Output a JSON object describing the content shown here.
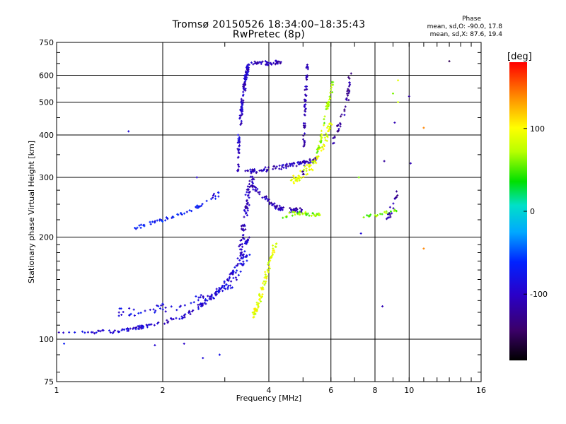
{
  "header": {
    "title": "Tromsø 20150526 18:34:00–18:35:43",
    "subtitle": "RwPretec (8p)"
  },
  "phase_stats": {
    "heading": "Phase",
    "line_o": "mean, sd,O: -90.0, 17.8",
    "line_x": "mean, sd,X:  87.6, 19.4"
  },
  "colorbar": {
    "label": "[deg]",
    "ticks": [
      {
        "value": 100,
        "label": "100"
      },
      {
        "value": 0,
        "label": "0"
      },
      {
        "value": -100,
        "label": "-100"
      }
    ],
    "range": [
      -180,
      180
    ]
  },
  "chart_data": {
    "type": "scatter",
    "title": "Tromsø 20150526 18:34:00–18:35:43",
    "subtitle": "RwPretec (8p)",
    "xlabel": "Frequency [MHz]",
    "ylabel": "Stationary phase Virtual Height [km]",
    "xscale": "log",
    "yscale": "log",
    "xlim": [
      1,
      16
    ],
    "ylim": [
      75,
      750
    ],
    "grid": true,
    "x_ticks": [
      {
        "value": 1,
        "label": "1",
        "grid": false
      },
      {
        "value": 2,
        "label": "2",
        "grid": true
      },
      {
        "value": 4,
        "label": "4",
        "grid": true
      },
      {
        "value": 6,
        "label": "6",
        "grid": true
      },
      {
        "value": 8,
        "label": "8",
        "grid": true
      },
      {
        "value": 10,
        "label": "10",
        "grid": true
      },
      {
        "value": 16,
        "label": "16",
        "grid": false
      }
    ],
    "y_ticks": [
      {
        "value": 75,
        "label": "75",
        "grid": false
      },
      {
        "value": 100,
        "label": "100",
        "grid": true
      },
      {
        "value": 200,
        "label": "200",
        "grid": true
      },
      {
        "value": 300,
        "label": "300",
        "grid": true
      },
      {
        "value": 400,
        "label": "400",
        "grid": true
      },
      {
        "value": 500,
        "label": "500",
        "grid": true
      },
      {
        "value": 600,
        "label": "600",
        "grid": true
      },
      {
        "value": 750,
        "label": "750",
        "grid": false
      }
    ],
    "series": [
      {
        "comment": "E-region trace",
        "segments": [
          {
            "x": [
              1.0,
              1.2,
              1.4,
              1.55,
              1.7,
              1.85,
              2.0,
              2.2,
              2.4,
              2.6,
              2.8,
              3.0,
              3.15,
              3.3,
              3.42,
              3.5
            ],
            "y": [
              105,
              105,
              105,
              106,
              108,
              110,
              112,
              115,
              120,
              127,
              135,
              145,
              157,
              170,
              185,
              200
            ],
            "phase": -95,
            "n": 160,
            "jx": 0.01,
            "jy": 0.012
          }
        ]
      },
      {
        "comment": "lower oblique trace",
        "segments": [
          {
            "x": [
              1.5,
              1.8,
              2.1,
              2.4,
              2.7,
              3.0,
              3.2,
              3.35,
              3.5
            ],
            "y": [
              120,
              122,
              124,
              128,
              133,
              140,
              150,
              165,
              180
            ],
            "phase": -85,
            "n": 90,
            "jx": 0.02,
            "jy": 0.03
          }
        ]
      },
      {
        "comment": "sparse mid trace",
        "segments": [
          {
            "x": [
              1.6,
              1.8,
              2.0,
              2.2,
              2.4,
              2.6
            ],
            "y": [
              210,
              218,
              225,
              232,
              240,
              250
            ],
            "phase": -70,
            "n": 45,
            "jx": 0.01,
            "jy": 0.01
          },
          {
            "x": [
              2.6,
              2.8,
              2.95
            ],
            "y": [
              252,
              262,
              275
            ],
            "phase": -80,
            "n": 10,
            "jx": 0.015,
            "jy": 0.015
          }
        ]
      },
      {
        "comment": "F-region O trace",
        "segments": [
          {
            "x": [
              3.25,
              3.3,
              3.35,
              3.4,
              3.45,
              3.5
            ],
            "y": [
              300,
              400,
              480,
              540,
              600,
              640
            ],
            "phase": -100,
            "n": 120,
            "jx": 0.008,
            "jy": 0.02
          },
          {
            "x": [
              3.3,
              3.4,
              3.5,
              3.6
            ],
            "y": [
              170,
              220,
              270,
              310
            ],
            "phase": -105,
            "n": 80,
            "jx": 0.015,
            "jy": 0.03
          },
          {
            "x": [
              3.6,
              3.8,
              4.0,
              4.2,
              4.4
            ],
            "y": [
              650,
              655,
              650,
              655,
              650
            ],
            "phase": -110,
            "n": 40,
            "jx": 0.01,
            "jy": 0.012
          },
          {
            "x": [
              3.4,
              3.8,
              4.2,
              4.6,
              5.0,
              5.5
            ],
            "y": [
              310,
              315,
              320,
              325,
              330,
              340
            ],
            "phase": -105,
            "n": 90,
            "jx": 0.01,
            "jy": 0.015
          },
          {
            "x": [
              3.6,
              3.9,
              4.2,
              4.5,
              5.0
            ],
            "y": [
              280,
              260,
              245,
              240,
              240
            ],
            "phase": -110,
            "n": 70,
            "jx": 0.01,
            "jy": 0.015
          },
          {
            "x": [
              5.0,
              5.05,
              5.1,
              5.15
            ],
            "y": [
              300,
              450,
              560,
              640
            ],
            "phase": -110,
            "n": 60,
            "jx": 0.006,
            "jy": 0.02
          }
        ]
      },
      {
        "comment": "F-region X trace",
        "segments": [
          {
            "x": [
              3.6,
              3.8,
              4.0,
              4.2
            ],
            "y": [
              115,
              135,
              165,
              195
            ],
            "phase": 90,
            "n": 80,
            "jx": 0.01,
            "jy": 0.02
          },
          {
            "x": [
              4.4,
              4.7,
              5.0,
              5.3,
              5.6
            ],
            "y": [
              230,
              235,
              235,
              233,
              232
            ],
            "phase": 60,
            "n": 40,
            "jx": 0.01,
            "jy": 0.012
          },
          {
            "x": [
              4.6,
              5.0,
              5.4,
              5.8,
              6.0
            ],
            "y": [
              290,
              310,
              330,
              380,
              440
            ],
            "phase": 90,
            "n": 80,
            "jx": 0.01,
            "jy": 0.03
          },
          {
            "x": [
              5.5,
              5.7,
              5.9,
              6.1
            ],
            "y": [
              350,
              420,
              500,
              580
            ],
            "phase": 70,
            "n": 50,
            "jx": 0.008,
            "jy": 0.02
          }
        ]
      },
      {
        "comment": "high-frequency traces",
        "segments": [
          {
            "x": [
              6.1,
              6.3,
              6.5,
              6.7,
              6.8
            ],
            "y": [
              380,
              420,
              460,
              520,
              600
            ],
            "phase": -120,
            "n": 40,
            "jx": 0.008,
            "jy": 0.02
          },
          {
            "x": [
              7.4,
              8.0,
              8.6,
              9.2
            ],
            "y": [
              230,
              232,
              236,
              240
            ],
            "phase": 60,
            "n": 22,
            "jx": 0.01,
            "jy": 0.01
          },
          {
            "x": [
              8.7,
              9.0,
              9.3
            ],
            "y": [
              225,
              250,
              270
            ],
            "phase": -115,
            "n": 18,
            "jx": 0.01,
            "jy": 0.02
          }
        ]
      },
      {
        "comment": "scatter noise",
        "points": [
          {
            "x": 1.6,
            "y": 410,
            "phase": -90
          },
          {
            "x": 2.5,
            "y": 300,
            "phase": -95
          },
          {
            "x": 10.0,
            "y": 520,
            "phase": -120
          },
          {
            "x": 11.0,
            "y": 420,
            "phase": 140
          },
          {
            "x": 11.0,
            "y": 185,
            "phase": 140
          },
          {
            "x": 13.0,
            "y": 660,
            "phase": -150
          },
          {
            "x": 10.1,
            "y": 330,
            "phase": -110
          },
          {
            "x": 9.3,
            "y": 580,
            "phase": 90
          },
          {
            "x": 9.3,
            "y": 500,
            "phase": 80
          },
          {
            "x": 9.1,
            "y": 435,
            "phase": -110
          },
          {
            "x": 9.0,
            "y": 530,
            "phase": 60
          },
          {
            "x": 8.5,
            "y": 335,
            "phase": -120
          },
          {
            "x": 7.2,
            "y": 300,
            "phase": 60
          },
          {
            "x": 2.6,
            "y": 88,
            "phase": -90
          },
          {
            "x": 1.9,
            "y": 96,
            "phase": -95
          },
          {
            "x": 2.3,
            "y": 97,
            "phase": -100
          },
          {
            "x": 8.4,
            "y": 125,
            "phase": -110
          },
          {
            "x": 7.3,
            "y": 205,
            "phase": -90
          },
          {
            "x": 2.9,
            "y": 90,
            "phase": -80
          },
          {
            "x": 1.05,
            "y": 97,
            "phase": -70
          }
        ]
      }
    ]
  }
}
